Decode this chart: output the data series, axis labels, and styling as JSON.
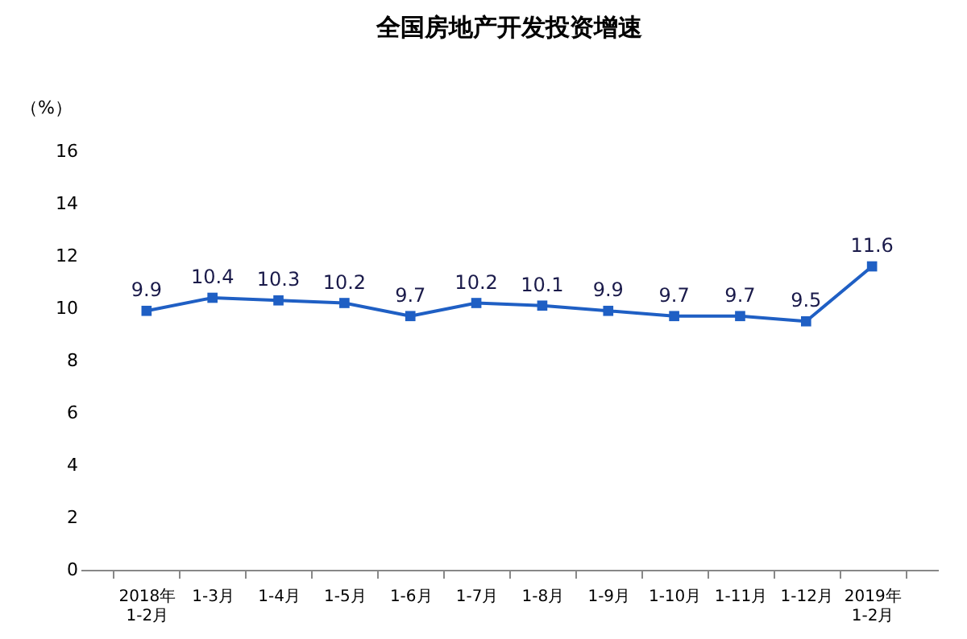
{
  "chart_data": {
    "type": "line",
    "title": "全国房地产开发投资增速",
    "ylabel": "（%）",
    "categories": [
      "2018年\n1-2月",
      "1-3月",
      "1-4月",
      "1-5月",
      "1-6月",
      "1-7月",
      "1-8月",
      "1-9月",
      "1-10月",
      "1-11月",
      "1-12月",
      "2019年\n1-2月"
    ],
    "series": [
      {
        "color": "#1f5fc4",
        "values": [
          9.9,
          10.4,
          10.3,
          10.2,
          9.7,
          10.2,
          10.1,
          9.9,
          9.7,
          9.7,
          9.5,
          11.6
        ]
      }
    ],
    "ylim": [
      0,
      16
    ],
    "yticks": [
      0,
      2,
      4,
      6,
      8,
      10,
      12,
      14,
      16
    ],
    "grid": false,
    "legend": false,
    "marker": "square",
    "line_style": "solid",
    "data_labels": true
  }
}
